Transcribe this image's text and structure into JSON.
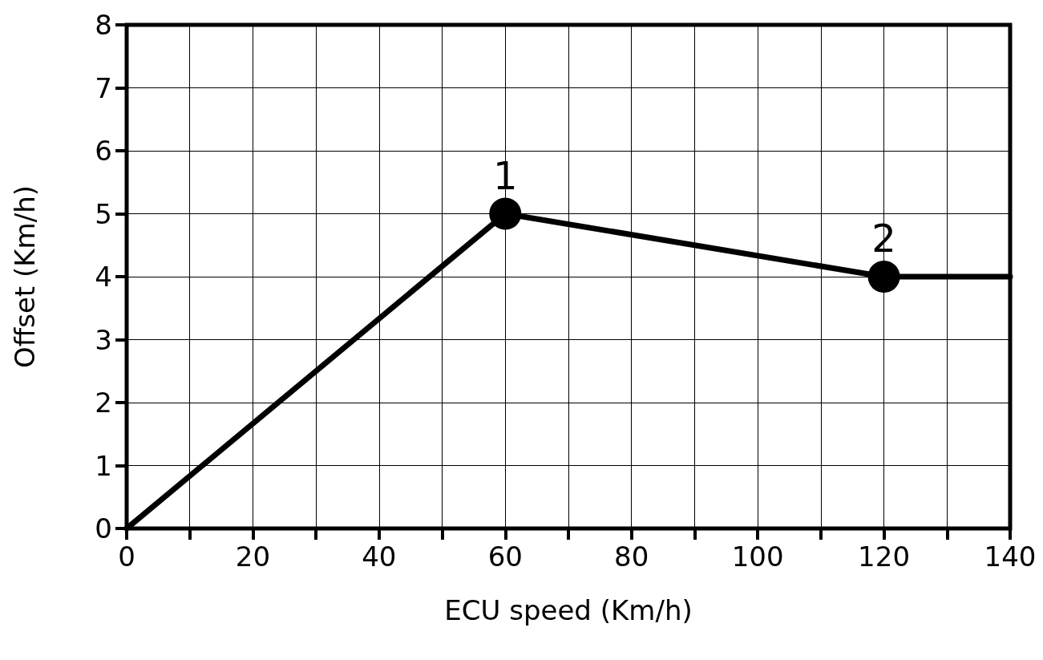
{
  "chart_data": {
    "type": "line",
    "xlabel": "ECU speed (Km/h)",
    "ylabel": "Offset (Km/h)",
    "x": [
      0,
      60,
      120,
      140
    ],
    "series": [
      {
        "type": "line",
        "color": "#000000",
        "values": [
          0,
          5,
          4,
          4
        ],
        "marker": "none",
        "line_style": "solid"
      },
      {
        "type": "scatter",
        "color": "#000000",
        "x": [
          60,
          120
        ],
        "values": [
          5,
          4
        ],
        "marker": "circle"
      }
    ],
    "annotations": [
      {
        "text": "1",
        "x": 60,
        "y": 5
      },
      {
        "text": "2",
        "x": 120,
        "y": 4
      }
    ],
    "xlim": [
      0,
      140
    ],
    "ylim": [
      0,
      8
    ],
    "xticks": [
      0,
      {
        "value": 10,
        "label": null
      },
      20,
      {
        "value": 30,
        "label": null
      },
      40,
      {
        "value": 50,
        "label": null
      },
      60,
      {
        "value": 70,
        "label": null
      },
      80,
      {
        "value": 90,
        "label": null
      },
      100,
      {
        "value": 110,
        "label": null
      },
      120,
      {
        "value": 130,
        "label": null
      },
      140
    ],
    "yticks": [
      0,
      1,
      2,
      3,
      4,
      5,
      6,
      7,
      8
    ],
    "grid": true
  }
}
